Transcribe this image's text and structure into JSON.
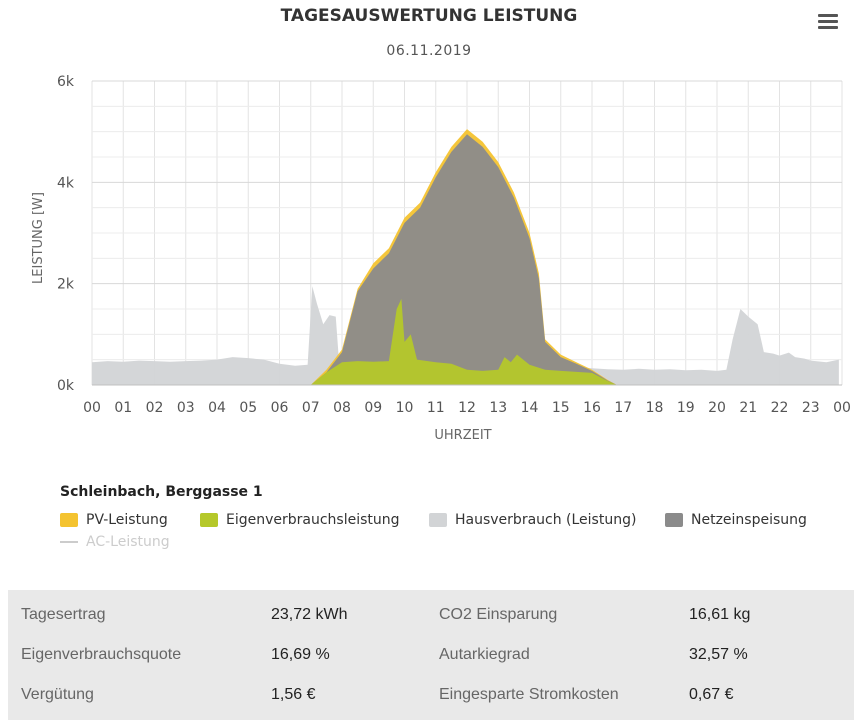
{
  "header": {
    "title": "TAGESAUSWERTUNG LEISTUNG",
    "date": "06.11.2019",
    "menu_icon": "hamburger-menu-icon"
  },
  "chart_data": {
    "type": "area",
    "xlabel": "UHRZEIT",
    "ylabel": "LEISTUNG [W]",
    "xlim": [
      0,
      24
    ],
    "ylim": [
      0,
      6000
    ],
    "x_ticks": [
      "00",
      "01",
      "02",
      "03",
      "04",
      "05",
      "06",
      "07",
      "08",
      "09",
      "10",
      "11",
      "12",
      "13",
      "14",
      "15",
      "16",
      "17",
      "18",
      "19",
      "20",
      "21",
      "22",
      "23",
      "00"
    ],
    "y_ticks": [
      "0k",
      "2k",
      "4k",
      "6k"
    ],
    "grid": true,
    "legend_title": "Schleinbach, Berggasse 1",
    "legend_position": "bottom-left",
    "series": [
      {
        "name": "Hausverbrauch (Leistung)",
        "color": "#d2d4d6",
        "points": [
          [
            0,
            450
          ],
          [
            0.5,
            470
          ],
          [
            1,
            460
          ],
          [
            1.5,
            480
          ],
          [
            2,
            470
          ],
          [
            2.5,
            460
          ],
          [
            3,
            470
          ],
          [
            3.5,
            480
          ],
          [
            4,
            500
          ],
          [
            4.5,
            550
          ],
          [
            5,
            530
          ],
          [
            5.5,
            500
          ],
          [
            6,
            420
          ],
          [
            6.5,
            380
          ],
          [
            6.9,
            400
          ],
          [
            7.05,
            1950
          ],
          [
            7.2,
            1600
          ],
          [
            7.4,
            1200
          ],
          [
            7.6,
            1380
          ],
          [
            7.8,
            1350
          ],
          [
            7.9,
            500
          ],
          [
            8.3,
            480
          ],
          [
            9,
            480
          ],
          [
            10,
            450
          ],
          [
            11,
            440
          ],
          [
            12,
            430
          ],
          [
            13,
            420
          ],
          [
            14,
            410
          ],
          [
            15,
            380
          ],
          [
            15.5,
            360
          ],
          [
            16,
            330
          ],
          [
            16.5,
            310
          ],
          [
            17,
            300
          ],
          [
            17.5,
            320
          ],
          [
            18,
            300
          ],
          [
            18.5,
            310
          ],
          [
            19,
            290
          ],
          [
            19.5,
            300
          ],
          [
            20,
            280
          ],
          [
            20.3,
            300
          ],
          [
            20.5,
            900
          ],
          [
            20.75,
            1500
          ],
          [
            21,
            1350
          ],
          [
            21.3,
            1200
          ],
          [
            21.5,
            650
          ],
          [
            21.8,
            620
          ],
          [
            22,
            580
          ],
          [
            22.3,
            640
          ],
          [
            22.5,
            550
          ],
          [
            22.8,
            520
          ],
          [
            23,
            480
          ],
          [
            23.5,
            450
          ],
          [
            23.9,
            500
          ]
        ]
      },
      {
        "name": "PV-Leistung",
        "color": "#f4c330",
        "points": [
          [
            7,
            0
          ],
          [
            7.5,
            300
          ],
          [
            8,
            700
          ],
          [
            8.5,
            1900
          ],
          [
            9,
            2400
          ],
          [
            9.5,
            2700
          ],
          [
            10,
            3300
          ],
          [
            10.5,
            3600
          ],
          [
            11,
            4200
          ],
          [
            11.5,
            4700
          ],
          [
            12,
            5050
          ],
          [
            12.5,
            4800
          ],
          [
            13,
            4400
          ],
          [
            13.5,
            3800
          ],
          [
            14,
            3000
          ],
          [
            14.3,
            2200
          ],
          [
            14.5,
            900
          ],
          [
            15,
            600
          ],
          [
            15.5,
            450
          ],
          [
            16,
            300
          ],
          [
            16.5,
            100
          ],
          [
            16.8,
            0
          ]
        ]
      },
      {
        "name": "Netzeinspeisung",
        "color": "#8b8b8b",
        "points": [
          [
            7,
            0
          ],
          [
            7.5,
            250
          ],
          [
            8,
            650
          ],
          [
            8.5,
            1850
          ],
          [
            9,
            2300
          ],
          [
            9.5,
            2600
          ],
          [
            10,
            3200
          ],
          [
            10.5,
            3500
          ],
          [
            11,
            4100
          ],
          [
            11.5,
            4600
          ],
          [
            12,
            4950
          ],
          [
            12.5,
            4700
          ],
          [
            13,
            4300
          ],
          [
            13.5,
            3700
          ],
          [
            14,
            2900
          ],
          [
            14.3,
            2100
          ],
          [
            14.5,
            850
          ],
          [
            15,
            550
          ],
          [
            15.5,
            420
          ],
          [
            16,
            280
          ],
          [
            16.5,
            90
          ],
          [
            16.8,
            0
          ]
        ]
      },
      {
        "name": "Eigenverbrauchsleistung",
        "color": "#b5c82a",
        "points": [
          [
            7,
            0
          ],
          [
            7.5,
            250
          ],
          [
            8,
            450
          ],
          [
            8.5,
            470
          ],
          [
            9,
            460
          ],
          [
            9.5,
            470
          ],
          [
            9.75,
            1500
          ],
          [
            9.9,
            1700
          ],
          [
            10,
            850
          ],
          [
            10.2,
            1000
          ],
          [
            10.4,
            500
          ],
          [
            11,
            450
          ],
          [
            11.5,
            420
          ],
          [
            12,
            300
          ],
          [
            12.5,
            280
          ],
          [
            13,
            300
          ],
          [
            13.2,
            550
          ],
          [
            13.4,
            450
          ],
          [
            13.6,
            600
          ],
          [
            14,
            400
          ],
          [
            14.5,
            300
          ],
          [
            15,
            280
          ],
          [
            15.5,
            260
          ],
          [
            16,
            240
          ],
          [
            16.5,
            80
          ],
          [
            16.8,
            0
          ]
        ]
      },
      {
        "name": "AC-Leistung",
        "color": "#cccccc",
        "visible": false,
        "points": []
      }
    ]
  },
  "legend": [
    {
      "label": "PV-Leistung",
      "color": "#f4c330",
      "visible": true
    },
    {
      "label": "Eigenverbrauchsleistung",
      "color": "#b5c82a",
      "visible": true
    },
    {
      "label": "Hausverbrauch (Leistung)",
      "color": "#d2d4d6",
      "visible": true
    },
    {
      "label": "Netzeinspeisung",
      "color": "#8b8b8b",
      "visible": true
    },
    {
      "label": "AC-Leistung",
      "color": "#cccccc",
      "visible": false
    }
  ],
  "stats": [
    {
      "label": "Tagesertrag",
      "value": "23,72 kWh",
      "label2": "CO2 Einsparung",
      "value2": "16,61 kg"
    },
    {
      "label": "Eigenverbrauchsquote",
      "value": "16,69 %",
      "label2": "Autarkiegrad",
      "value2": "32,57 %"
    },
    {
      "label": "Vergütung",
      "value": "1,56 €",
      "label2": "Eingesparte Stromkosten",
      "value2": "0,67 €"
    }
  ]
}
